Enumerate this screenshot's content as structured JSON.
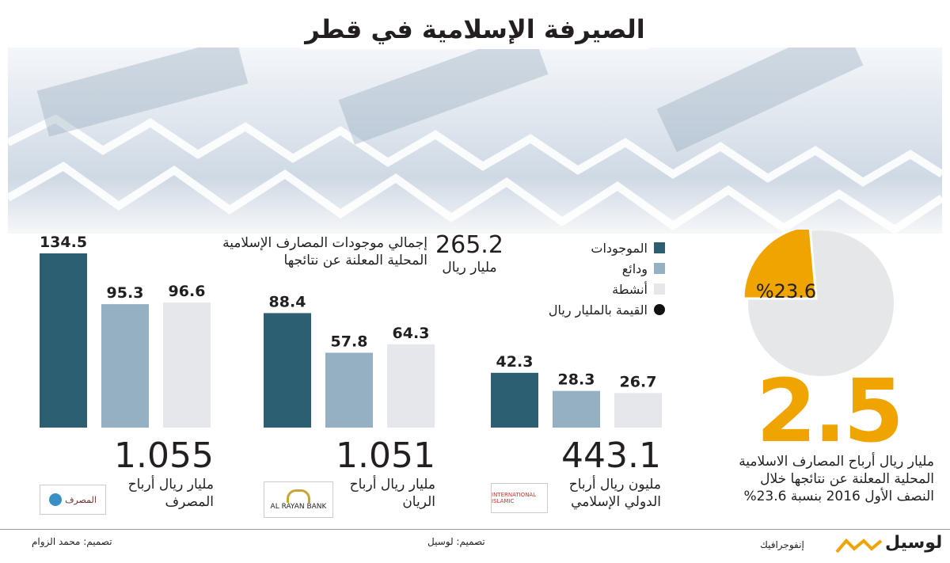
{
  "title": "الصيرفة الإسلامية في قطر",
  "colors": {
    "assets": "#2d5f73",
    "deposits": "#95b0c2",
    "activities": "#e5e7ea",
    "accent": "#f0a400",
    "pie_rest": "#e6e7e9"
  },
  "legend": {
    "assets": "الموجودات",
    "deposits": "ودائع",
    "activities": "أنشطة",
    "value_note": "القيمة بالمليار ريال"
  },
  "total": {
    "value": "265.2",
    "unit": "مليار ريال",
    "label_line1": "إجمالي موجودات المصارف الإسلامية",
    "label_line2": "المحلية المعلنة عن نتائجها"
  },
  "profit_summary": {
    "big_value": "2.5",
    "pie_label": "%23.6",
    "pie_share": 0.236,
    "line1": "مليار ريال أرباح المصارف الاسلامية",
    "line2": "المحلية المعلنة عن نتائجها خلال",
    "line3": "النصف الأول 2016 بنسبة 23.6%"
  },
  "banks": [
    {
      "profit": "1.055",
      "profit_line1": "مليار ريال أرباح",
      "profit_line2": "المصرف",
      "logo_text": "المصرف",
      "logo_icon": "qib-logo"
    },
    {
      "profit": "1.051",
      "profit_line1": "مليار ريال أرباح",
      "profit_line2": "الريان",
      "logo_text": "AL RAYAN BANK",
      "logo_icon": "alrayan-logo"
    },
    {
      "profit": "443.1",
      "profit_line1": "مليون ريال أرباح",
      "profit_line2": "الدولي الإسلامي",
      "logo_text": "INTERNATIONAL ISLAMIC",
      "logo_icon": "qiib-logo"
    }
  ],
  "chart_data": {
    "type": "bar",
    "categories": [
      "المصرف",
      "الريان",
      "الدولي الإسلامي"
    ],
    "series": [
      {
        "name": "الموجودات",
        "values": [
          134.5,
          88.4,
          42.3
        ]
      },
      {
        "name": "ودائع",
        "values": [
          95.3,
          57.8,
          28.3
        ]
      },
      {
        "name": "أنشطة",
        "values": [
          96.6,
          64.3,
          26.7
        ]
      }
    ],
    "value_labels": [
      [
        "134.5",
        "95.3",
        "96.6"
      ],
      [
        "88.4",
        "57.8",
        "64.3"
      ],
      [
        "42.3",
        "28.3",
        "26.7"
      ]
    ],
    "ylim": [
      0,
      140
    ]
  },
  "footer": {
    "brand": "لوسيل",
    "brand_sub": "إنفوجرافيك",
    "design_center": "تصميم: لوسيل",
    "design_left": "تصميم: محمد الزوام"
  }
}
